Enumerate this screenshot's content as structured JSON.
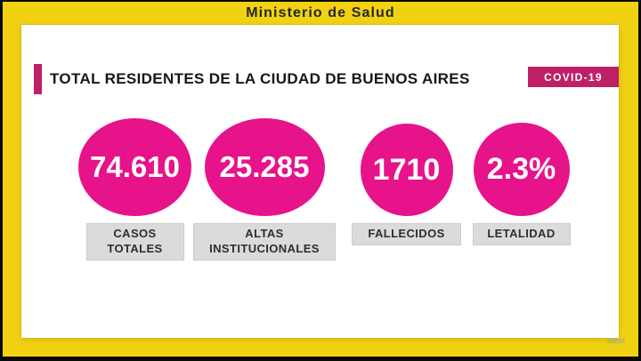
{
  "window": {
    "top_bar_title": "Ministerio de Salud"
  },
  "header": {
    "title": "TOTAL RESIDENTES DE LA CIUDAD DE BUENOS AIRES",
    "badge_label": "COVID-19"
  },
  "stats": [
    {
      "value": "74.610",
      "label": "CASOS\nTOTALES"
    },
    {
      "value": "25.285",
      "label": "ALTAS\nINSTITUCIONALES"
    },
    {
      "value": "1710",
      "label": "FALLECIDOS"
    },
    {
      "value": "2.3%",
      "label": "LETALIDAD"
    }
  ],
  "colors": {
    "frame_yellow": "#F1D213",
    "circle_pink": "#E6138B",
    "accent_pink": "#BE2066",
    "label_bg": "#DBDBDB"
  },
  "chart_data": {
    "type": "table",
    "title": "TOTAL RESIDENTES DE LA CIUDAD DE BUENOS AIRES",
    "badge": "COVID-19",
    "source_header": "Ministerio de Salud",
    "categories": [
      "CASOS TOTALES",
      "ALTAS INSTITUCIONALES",
      "FALLECIDOS",
      "LETALIDAD"
    ],
    "values_display": [
      "74.610",
      "25.285",
      "1710",
      "2.3%"
    ],
    "values_numeric": [
      74610,
      25285,
      1710,
      2.3
    ],
    "legend_position": "none",
    "grid": false
  }
}
